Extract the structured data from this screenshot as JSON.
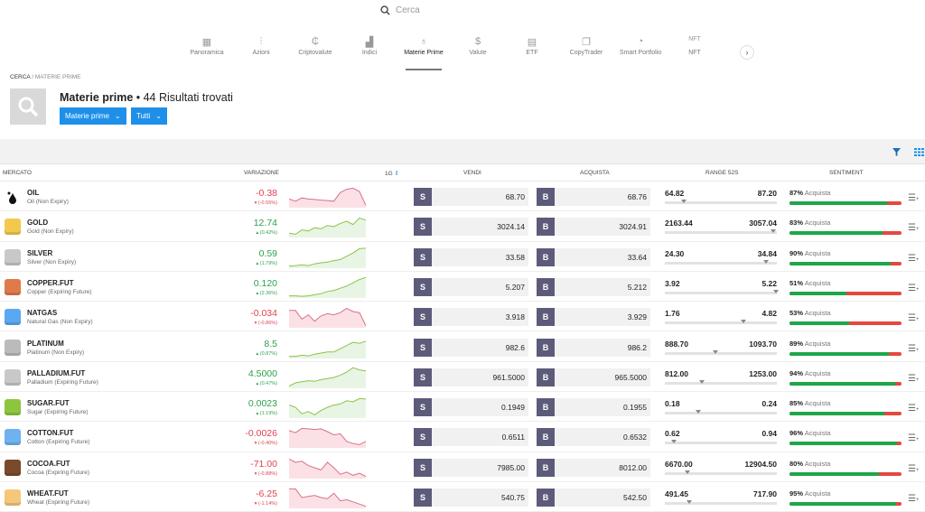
{
  "search": {
    "placeholder": "Cerca",
    "icon": "search-icon"
  },
  "nav": {
    "items": [
      {
        "label": "Panoramica",
        "icon": "grid-icon",
        "glyph": "▦"
      },
      {
        "label": "Azioni",
        "icon": "stocks-icon",
        "glyph": "⫶"
      },
      {
        "label": "Criptovalute",
        "icon": "crypto-icon",
        "glyph": "₵"
      },
      {
        "label": "Indici",
        "icon": "indices-icon",
        "glyph": "▟"
      },
      {
        "label": "Materie Prime",
        "icon": "commodities-icon",
        "glyph": "♁",
        "active": true
      },
      {
        "label": "Valute",
        "icon": "dollar-icon",
        "glyph": "$"
      },
      {
        "label": "ETF",
        "icon": "etf-icon",
        "glyph": "▤"
      },
      {
        "label": "CopyTrader",
        "icon": "copytrader-icon",
        "glyph": "❐"
      },
      {
        "label": "Smart Portfolio",
        "icon": "portfolio-icon",
        "glyph": "◔"
      },
      {
        "label": "NFT",
        "icon": "nft-icon",
        "glyph": "NFT"
      }
    ],
    "next": "›"
  },
  "breadcrumb": {
    "root": "CERCA",
    "sep": " / ",
    "current": "MATERIE PRIME"
  },
  "header": {
    "title": "Materie prime",
    "results": " • 44 Risultati trovati",
    "filter1": "Materie prime",
    "filter2": "Tutti"
  },
  "columns": {
    "market": "MERCATO",
    "change": "VARIAZIONE",
    "period": "1G",
    "sell": "VENDI",
    "buy": "ACQUISTA",
    "range": "RANGE 52S",
    "sentiment": "SENTIMENT"
  },
  "colors": {
    "up": "#2ca24c",
    "down": "#e0414f",
    "accent": "#1e90ea",
    "button": "#5d5b7a",
    "buy_sentiment": "#1ea64a",
    "sell_sentiment": "#e5483e"
  },
  "sell_label": "S",
  "buy_label": "B",
  "sentiment_label": "Acquista",
  "rows": [
    {
      "symbol": "OIL",
      "name": "Oil (Non Expiry)",
      "change": "-0.38",
      "pct": "▾ (-0.55%)",
      "dir": "down",
      "sell": "68.70",
      "buy": "68.76",
      "low": "64.82",
      "high": "87.20",
      "range_pos": 0.17,
      "sent_pct": "87%",
      "sent": 87,
      "iconColor": "#fff",
      "trend": [
        0.4,
        0.3,
        0.45,
        0.4,
        0.38,
        0.35,
        0.33,
        0.3,
        0.7,
        0.85,
        0.9,
        0.75,
        0.1
      ]
    },
    {
      "symbol": "GOLD",
      "name": "Gold (Non Expiry)",
      "change": "12.74",
      "pct": "▴ (0.42%)",
      "dir": "up",
      "sell": "3024.14",
      "buy": "3024.91",
      "low": "2163.44",
      "high": "3057.04",
      "range_pos": 0.97,
      "sent_pct": "83%",
      "sent": 83,
      "iconColor": "#f2c94c",
      "trend": [
        0.2,
        0.15,
        0.35,
        0.3,
        0.45,
        0.4,
        0.55,
        0.5,
        0.65,
        0.75,
        0.6,
        0.9,
        0.8
      ]
    },
    {
      "symbol": "SILVER",
      "name": "Silver (Non Expiry)",
      "change": "0.59",
      "pct": "▴ (1.79%)",
      "dir": "up",
      "sell": "33.58",
      "buy": "33.64",
      "low": "24.30",
      "high": "34.84",
      "range_pos": 0.9,
      "sent_pct": "90%",
      "sent": 90,
      "iconColor": "#c8c8c8",
      "trend": [
        0.1,
        0.12,
        0.15,
        0.12,
        0.2,
        0.25,
        0.28,
        0.35,
        0.4,
        0.55,
        0.7,
        0.9,
        0.92
      ]
    },
    {
      "symbol": "COPPER.FUT",
      "name": "Copper (Expiring Future)",
      "change": "0.120",
      "pct": "▴ (2.36%)",
      "dir": "up",
      "sell": "5.207",
      "buy": "5.212",
      "low": "3.92",
      "high": "5.22",
      "range_pos": 0.99,
      "sent_pct": "51%",
      "sent": 51,
      "iconColor": "#e07a4a",
      "trend": [
        0.1,
        0.1,
        0.08,
        0.1,
        0.15,
        0.2,
        0.3,
        0.35,
        0.45,
        0.55,
        0.7,
        0.85,
        0.95
      ]
    },
    {
      "symbol": "NATGAS",
      "name": "Natural Gas (Non Expiry)",
      "change": "-0.034",
      "pct": "▾ (-0.86%)",
      "dir": "down",
      "sell": "3.918",
      "buy": "3.929",
      "low": "1.76",
      "high": "4.82",
      "range_pos": 0.7,
      "sent_pct": "53%",
      "sent": 53,
      "iconColor": "#5aa9f0",
      "trend": [
        0.8,
        0.8,
        0.4,
        0.6,
        0.3,
        0.55,
        0.65,
        0.6,
        0.7,
        0.9,
        0.75,
        0.7,
        0.1
      ]
    },
    {
      "symbol": "PLATINUM",
      "name": "Platinum (Non Expiry)",
      "change": "8.5",
      "pct": "▴ (0.87%)",
      "dir": "up",
      "sell": "982.6",
      "buy": "986.2",
      "low": "888.70",
      "high": "1093.70",
      "range_pos": 0.45,
      "sent_pct": "89%",
      "sent": 89,
      "iconColor": "#bbb",
      "trend": [
        0.1,
        0.1,
        0.15,
        0.12,
        0.2,
        0.25,
        0.3,
        0.3,
        0.45,
        0.6,
        0.75,
        0.7,
        0.8
      ]
    },
    {
      "symbol": "PALLADIUM.FUT",
      "name": "Palladium (Expiring Future)",
      "change": "4.5000",
      "pct": "▴ (0.47%)",
      "dir": "up",
      "sell": "961.5000",
      "buy": "965.5000",
      "low": "812.00",
      "high": "1253.00",
      "range_pos": 0.33,
      "sent_pct": "94%",
      "sent": 94,
      "iconColor": "#c8c8c8",
      "trend": [
        0.1,
        0.25,
        0.3,
        0.35,
        0.32,
        0.4,
        0.45,
        0.5,
        0.6,
        0.75,
        0.95,
        0.85,
        0.8
      ]
    },
    {
      "symbol": "SUGAR.FUT",
      "name": "Sugar (Expiring Future)",
      "change": "0.0023",
      "pct": "▴ (1.19%)",
      "dir": "up",
      "sell": "0.1949",
      "buy": "0.1955",
      "low": "0.18",
      "high": "0.24",
      "range_pos": 0.3,
      "sent_pct": "85%",
      "sent": 85,
      "iconColor": "#8cc63f",
      "trend": [
        0.6,
        0.5,
        0.2,
        0.3,
        0.15,
        0.35,
        0.5,
        0.6,
        0.65,
        0.8,
        0.75,
        0.9,
        0.88
      ]
    },
    {
      "symbol": "COTTON.FUT",
      "name": "Cotton (Expiring Future)",
      "change": "-0.0026",
      "pct": "▾ (-0.40%)",
      "dir": "down",
      "sell": "0.6511",
      "buy": "0.6532",
      "low": "0.62",
      "high": "0.94",
      "range_pos": 0.08,
      "sent_pct": "96%",
      "sent": 96,
      "iconColor": "#6fb2ef",
      "trend": [
        0.8,
        0.7,
        0.9,
        0.88,
        0.85,
        0.88,
        0.75,
        0.6,
        0.65,
        0.3,
        0.2,
        0.15,
        0.3
      ]
    },
    {
      "symbol": "COCOA.FUT",
      "name": "Cocoa (Expiring Future)",
      "change": "-71.00",
      "pct": "▾ (-0.88%)",
      "dir": "down",
      "sell": "7985.00",
      "buy": "8012.00",
      "low": "6670.00",
      "high": "12904.50",
      "range_pos": 0.2,
      "sent_pct": "80%",
      "sent": 80,
      "iconColor": "#7a4a2a",
      "trend": [
        0.9,
        0.75,
        0.8,
        0.6,
        0.5,
        0.4,
        0.75,
        0.5,
        0.2,
        0.3,
        0.15,
        0.25,
        0.1
      ]
    },
    {
      "symbol": "WHEAT.FUT",
      "name": "Wheat (Expiring Future)",
      "change": "-6.25",
      "pct": "▾ (-1.14%)",
      "dir": "down",
      "sell": "540.75",
      "buy": "542.50",
      "low": "491.45",
      "high": "717.90",
      "range_pos": 0.22,
      "sent_pct": "95%",
      "sent": 95,
      "iconColor": "#f5c77a",
      "trend": [
        0.9,
        0.9,
        0.5,
        0.55,
        0.6,
        0.5,
        0.45,
        0.7,
        0.35,
        0.4,
        0.3,
        0.2,
        0.1
      ]
    }
  ]
}
